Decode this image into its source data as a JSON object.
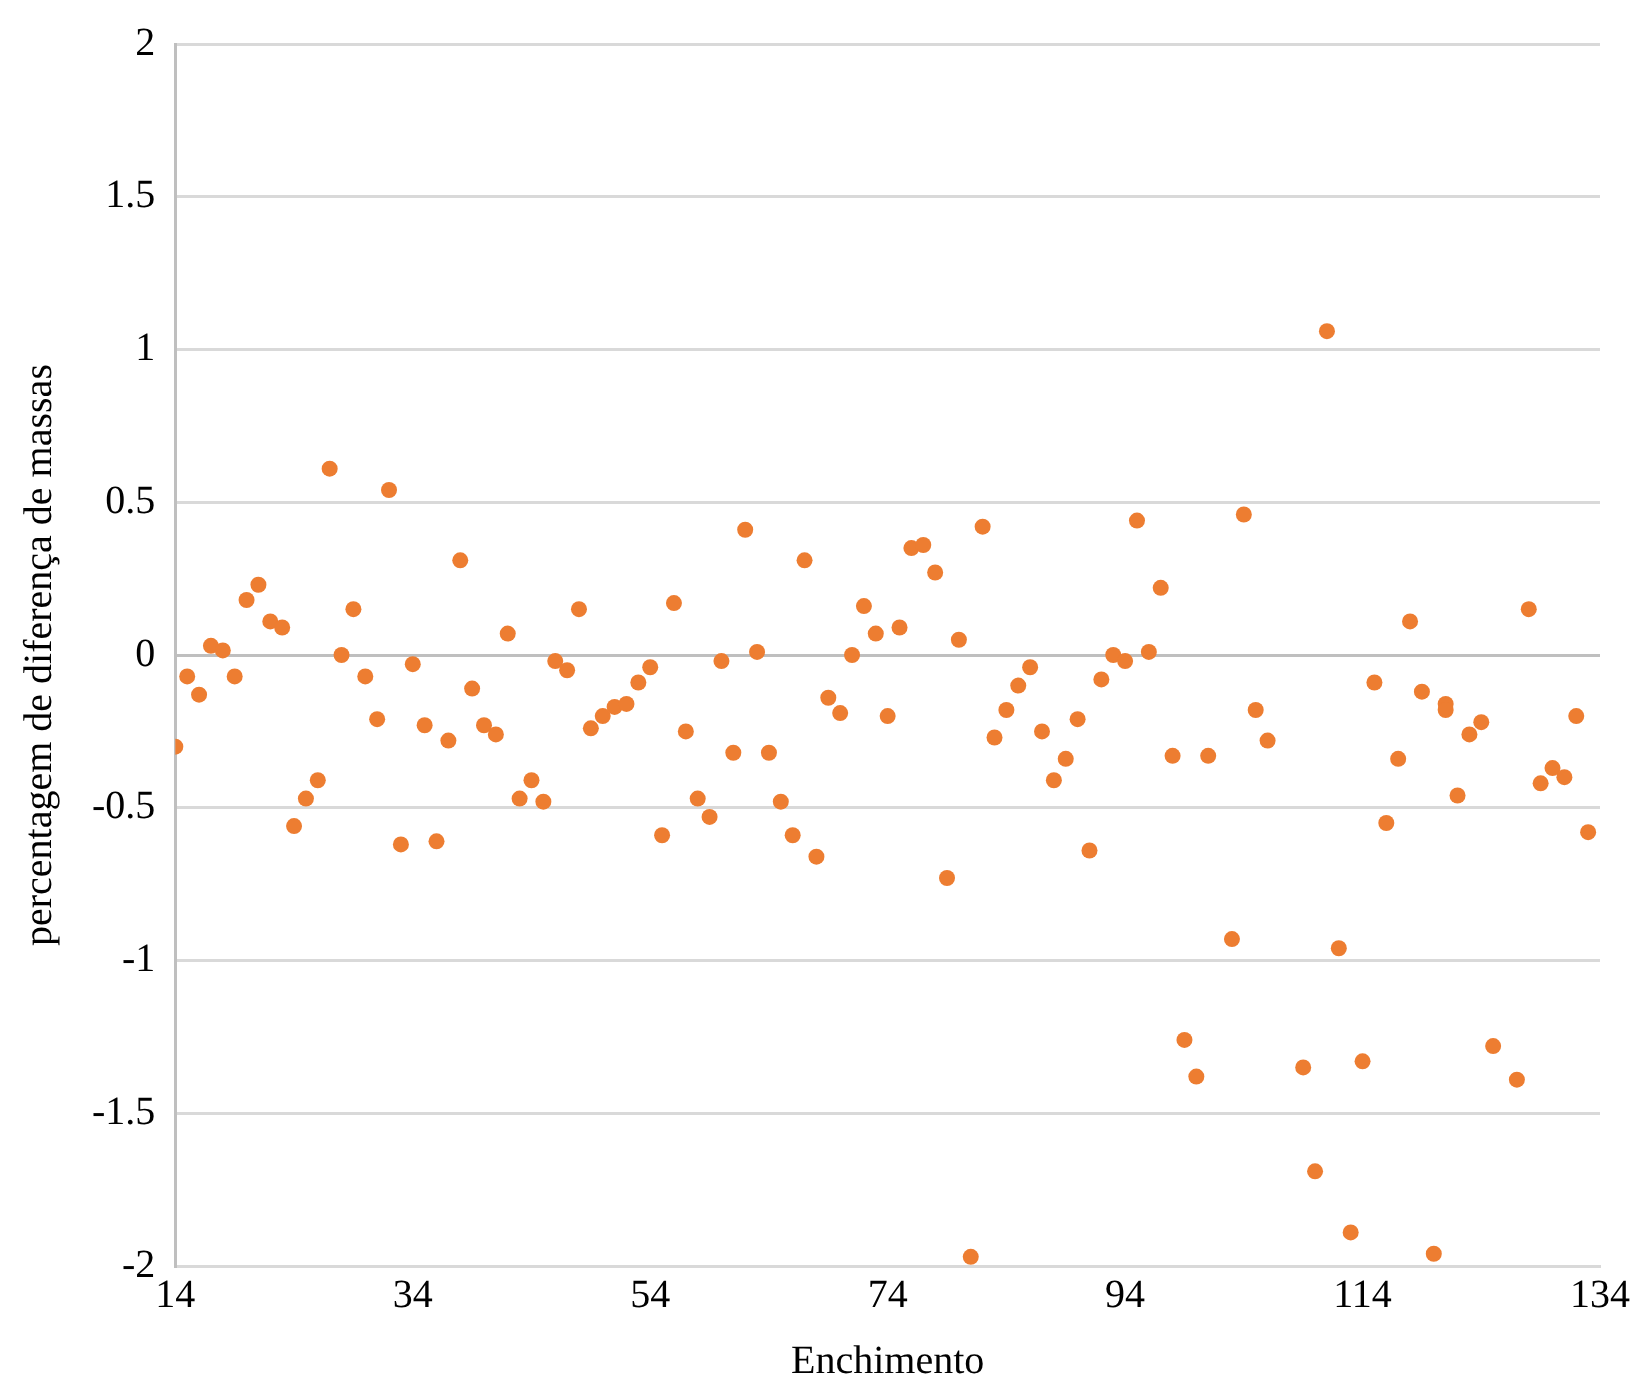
{
  "chart_data": {
    "type": "scatter",
    "xlabel": "Enchimento",
    "ylabel": "percentagem de diferença de massas",
    "series": [
      {
        "color": "#ed7d31",
        "x": [
          14,
          15,
          16,
          17,
          18,
          19,
          20,
          21,
          22,
          23,
          24,
          25,
          26,
          27,
          28,
          29,
          30,
          31,
          32,
          33,
          34,
          35,
          36,
          37,
          38,
          39,
          40,
          41,
          42,
          43,
          44,
          45,
          46,
          47,
          48,
          49,
          50,
          51,
          52,
          53,
          54,
          55,
          56,
          57,
          58,
          59,
          60,
          61,
          62,
          63,
          64,
          65,
          66,
          67,
          68,
          69,
          70,
          71,
          72,
          73,
          74,
          75,
          76,
          77,
          78,
          79,
          80,
          81,
          82,
          83,
          84,
          85,
          86,
          87,
          88,
          89,
          90,
          91,
          92,
          93,
          94,
          95,
          96,
          97,
          98,
          99,
          100,
          101,
          103,
          104,
          105,
          106,
          109,
          110,
          111,
          112,
          113,
          114,
          115,
          116,
          117,
          118,
          119,
          120,
          121,
          121,
          122,
          123,
          124,
          125,
          127,
          128,
          129,
          130,
          131,
          132,
          133
        ],
        "values": [
          -0.3,
          -0.07,
          -0.13,
          0.03,
          0.015,
          -0.07,
          0.18,
          0.23,
          0.11,
          0.09,
          -0.56,
          -0.47,
          -0.41,
          0.61,
          0,
          0.15,
          -0.07,
          -0.21,
          0.54,
          -0.62,
          -0.03,
          -0.23,
          -0.61,
          -0.28,
          0.31,
          -0.11,
          -0.23,
          -0.26,
          0.07,
          -0.47,
          -0.41,
          -0.48,
          -0.02,
          -0.05,
          0.15,
          -0.24,
          -0.2,
          -0.17,
          -0.16,
          -0.09,
          -0.04,
          -0.59,
          0.17,
          -0.25,
          -0.47,
          -0.53,
          -0.02,
          -0.32,
          0.41,
          0.01,
          -0.32,
          -0.48,
          -0.59,
          0.31,
          -0.66,
          -0.14,
          -0.19,
          0,
          0.16,
          0.07,
          -0.2,
          0.09,
          0.35,
          0.36,
          0.27,
          -0.73,
          0.05,
          -1.97,
          0.42,
          -0.27,
          -0.18,
          -0.1,
          -0.04,
          -0.25,
          -0.41,
          -0.34,
          -0.21,
          -0.64,
          -0.08,
          0,
          -0.02,
          0.44,
          0.01,
          0.22,
          -0.33,
          -1.26,
          -1.38,
          -0.33,
          -0.93,
          0.46,
          -0.18,
          -0.28,
          -1.35,
          -1.69,
          1.06,
          -0.96,
          -1.89,
          -1.33,
          -0.09,
          -0.55,
          -0.34,
          0.11,
          -0.12,
          -1.96,
          -0.16,
          -0.18,
          -0.46,
          -0.26,
          -0.22,
          -1.28,
          -1.39,
          0.15,
          -0.42,
          -0.37,
          -0.4,
          -0.2,
          -0.58
        ]
      }
    ],
    "xlim": [
      14,
      134
    ],
    "xticks": [
      14,
      34,
      54,
      74,
      94,
      114,
      134
    ],
    "ylim": [
      -2,
      2
    ],
    "yticks": [
      -2,
      -1.5,
      -1,
      -0.5,
      0,
      0.5,
      1,
      1.5,
      2
    ],
    "grid": "y",
    "legend": false,
    "marker": "circle"
  }
}
